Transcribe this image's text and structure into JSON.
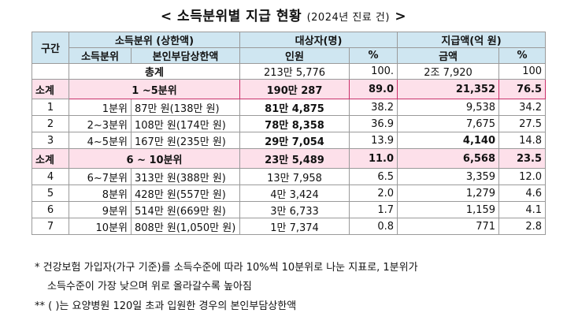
{
  "title": "< 소득분위별 지급 현황",
  "title_sub": "(2024년 진료 건)",
  "title_end": " >",
  "headers": {
    "gugan": "구간",
    "income_group": "소득분위 (상한액)",
    "beneficiaries": "대상자(명)",
    "payment": "지급액(억 원)",
    "income_decile": "소득분위",
    "cap": "본인부담상한액",
    "persons": "인원",
    "pct": "%",
    "amount": "금액",
    "pct2": "%"
  },
  "total": {
    "label": "총계",
    "persons": "213만 5,776",
    "pct": "100.",
    "amount": "2조 7,920",
    "pct2": "100"
  },
  "rows": [
    {
      "type": "subtotal",
      "gugan": "소계",
      "label": "1 ~5분위",
      "persons": "190만 287",
      "pct": "89.0",
      "amount": "21,352",
      "pct2": "76.5"
    },
    {
      "type": "row",
      "gugan": "1",
      "decile": "1분위",
      "cap": "87만 원(138만 원)",
      "persons": "81만 4,875",
      "pct": "38.2",
      "amount": "9,538",
      "pct2": "34.2"
    },
    {
      "type": "row",
      "gugan": "2",
      "decile": "2~3분위",
      "cap": "108만 원(174만 원)",
      "persons": "78만 8,358",
      "pct": "36.9",
      "amount": "7,675",
      "pct2": "27.5"
    },
    {
      "type": "row",
      "gugan": "3",
      "decile": "4~5분위",
      "cap": "167만 원(235만 원)",
      "persons": "29만 7,054",
      "pct": "13.9",
      "amount": "4,140",
      "pct2": "14.8"
    },
    {
      "type": "subtotal",
      "gugan": "소계",
      "label": "6 ~ 10분위",
      "persons": "23만 5,489",
      "pct": "11.0",
      "amount": "6,568",
      "pct2": "23.5"
    },
    {
      "type": "row",
      "gugan": "4",
      "decile": "6~7분위",
      "cap": "313만 원(388만 원)",
      "persons": "13만 7,958",
      "pct": "6.5",
      "amount": "3,359",
      "pct2": "12.0"
    },
    {
      "type": "row",
      "gugan": "5",
      "decile": "8분위",
      "cap": "428만 원(557만 원)",
      "persons": "4만 3,424",
      "pct": "2.0",
      "amount": "1,279",
      "pct2": "4.6"
    },
    {
      "type": "row",
      "gugan": "6",
      "decile": "9분위",
      "cap": "514만 원(669만 원)",
      "persons": "3만 6,733",
      "pct": "1.7",
      "amount": "1,159",
      "pct2": "4.1"
    },
    {
      "type": "row",
      "gugan": "7",
      "decile": "10분위",
      "cap": "808만 원(1,050만 원)",
      "persons": "1만 7,374",
      "pct": "0.8",
      "amount": "771",
      "pct2": "2.8"
    }
  ],
  "notes": [
    "* 건강보험 가입자(가구 기준)를 소득수준에 따라 10%씩 10분위로 나눈 지표로, 1분위가",
    "소득수준이 가장 낮으며 위로 올라갈수록 높아짐",
    "** ( )는 요양병원 120일 초과 입원한 경우의 본인부담상한액"
  ]
}
